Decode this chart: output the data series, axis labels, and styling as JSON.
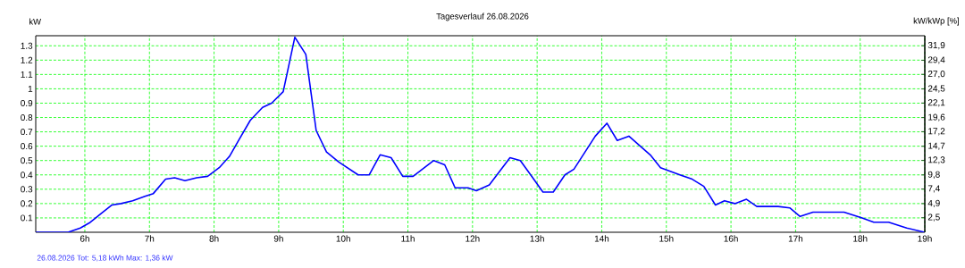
{
  "chart_data": {
    "type": "line",
    "title": "Tagesverlauf 26.08.2026",
    "ylabel": "kW",
    "y2label": "kW/kWp [%]",
    "annotations": [
      "26.08.2026 Tot: 5,18 kWh Max: 1,36 kW"
    ],
    "xlim": [
      5.24,
      19
    ],
    "xticks": [
      {
        "value": 6,
        "label": "6h"
      },
      {
        "value": 7,
        "label": "7h"
      },
      {
        "value": 8,
        "label": "8h"
      },
      {
        "value": 9,
        "label": "9h"
      },
      {
        "value": 10,
        "label": "10h"
      },
      {
        "value": 11,
        "label": "11h"
      },
      {
        "value": 12,
        "label": "12h"
      },
      {
        "value": 13,
        "label": "13h"
      },
      {
        "value": 14,
        "label": "14h"
      },
      {
        "value": 15,
        "label": "15h"
      },
      {
        "value": 16,
        "label": "16h"
      },
      {
        "value": 17,
        "label": "17h"
      },
      {
        "value": 18,
        "label": "18h"
      },
      {
        "value": 19,
        "label": "19h"
      }
    ],
    "ylim": [
      0,
      1.37
    ],
    "yticks": [
      0.1,
      0.2,
      0.3,
      0.4,
      0.5,
      0.6,
      0.7,
      0.8,
      0.9,
      1,
      1.1,
      1.2,
      1.3
    ],
    "y2lim": [
      0,
      33.6
    ],
    "y2ticks": [
      {
        "value": 2.5,
        "label": "2,5"
      },
      {
        "value": 4.9,
        "label": "4,9"
      },
      {
        "value": 7.4,
        "label": "7,4"
      },
      {
        "value": 9.8,
        "label": "9,8"
      },
      {
        "value": 12.3,
        "label": "12,3"
      },
      {
        "value": 14.7,
        "label": "14,7"
      },
      {
        "value": 17.2,
        "label": "17,2"
      },
      {
        "value": 19.6,
        "label": "19,6"
      },
      {
        "value": 22.1,
        "label": "22,1"
      },
      {
        "value": 24.5,
        "label": "24,5"
      },
      {
        "value": 27.0,
        "label": "27,0"
      },
      {
        "value": 29.4,
        "label": "29,4"
      },
      {
        "value": 31.9,
        "label": "31,9"
      }
    ],
    "grid": true,
    "series": [
      {
        "color": "#0000ff",
        "x": [
          5.24,
          5.74,
          5.93,
          6.07,
          6.25,
          6.42,
          6.56,
          6.74,
          6.93,
          7.06,
          7.25,
          7.39,
          7.55,
          7.73,
          7.9,
          8.08,
          8.24,
          8.38,
          8.56,
          8.75,
          8.89,
          9.07,
          9.25,
          9.42,
          9.58,
          9.74,
          9.93,
          10.23,
          10.4,
          10.57,
          10.74,
          10.92,
          11.08,
          11.4,
          11.57,
          11.73,
          11.93,
          12.06,
          12.26,
          12.58,
          12.74,
          12.9,
          13.09,
          13.25,
          13.43,
          13.57,
          13.9,
          14.08,
          14.24,
          14.42,
          14.75,
          14.91,
          15.21,
          15.4,
          15.58,
          15.76,
          15.9,
          16.06,
          16.24,
          16.4,
          16.73,
          16.91,
          17.07,
          17.27,
          17.75,
          18.03,
          18.21,
          18.44,
          18.72,
          19
        ],
        "values": [
          0,
          0,
          0.03,
          0.065,
          0.13,
          0.19,
          0.2,
          0.22,
          0.25,
          0.27,
          0.37,
          0.38,
          0.36,
          0.38,
          0.39,
          0.45,
          0.53,
          0.64,
          0.78,
          0.87,
          0.9,
          0.98,
          1.36,
          1.24,
          0.71,
          0.56,
          0.49,
          0.4,
          0.4,
          0.54,
          0.52,
          0.39,
          0.39,
          0.5,
          0.47,
          0.31,
          0.31,
          0.29,
          0.33,
          0.52,
          0.5,
          0.4,
          0.28,
          0.28,
          0.4,
          0.44,
          0.67,
          0.76,
          0.64,
          0.67,
          0.54,
          0.45,
          0.4,
          0.37,
          0.32,
          0.19,
          0.22,
          0.2,
          0.23,
          0.18,
          0.18,
          0.17,
          0.11,
          0.14,
          0.14,
          0.1,
          0.07,
          0.07,
          0.03,
          0
        ]
      }
    ]
  }
}
